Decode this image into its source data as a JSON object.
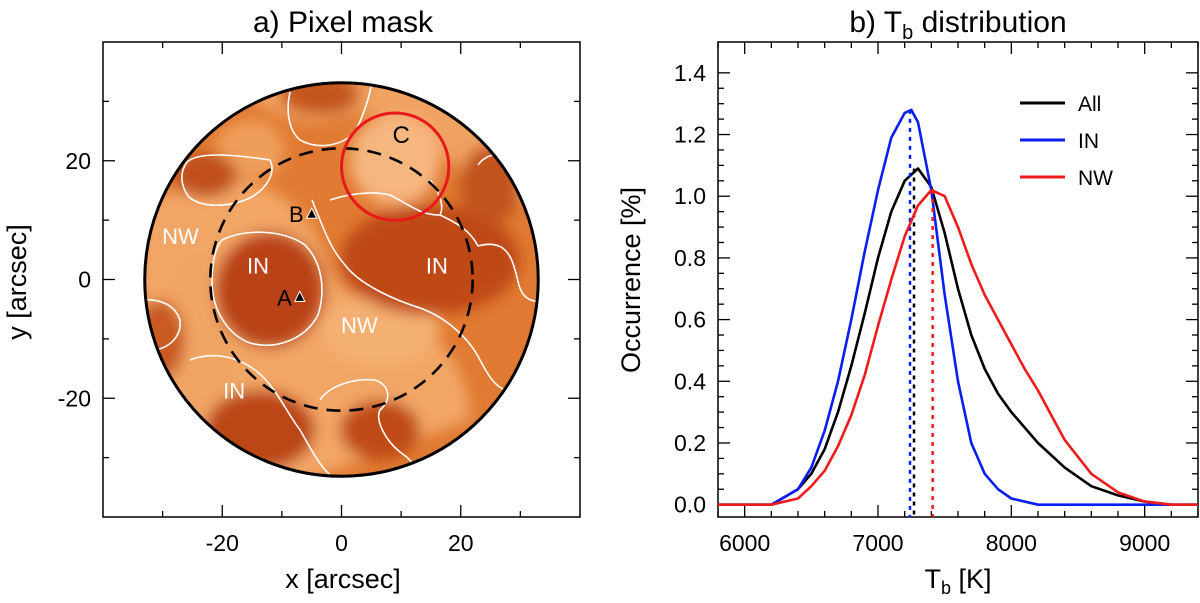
{
  "chart_data": [
    {
      "type": "heatmap",
      "title": "a) Pixel mask",
      "xlabel": "x [arcsec]",
      "ylabel": "y [arcsec]",
      "xlim": [
        -40,
        40
      ],
      "ylim": [
        -40,
        40
      ],
      "xticks": [
        -20,
        0,
        20
      ],
      "yticks": [
        -20,
        0,
        20
      ],
      "field_radius": 33,
      "dashed_circle": {
        "cx": 0,
        "cy": 0,
        "r": 22
      },
      "circle_c": {
        "label": "C",
        "cx": 9,
        "cy": 19,
        "r": 9,
        "color": "#e8191a"
      },
      "points": [
        {
          "label": "A",
          "x": -7,
          "y": -3
        },
        {
          "label": "B",
          "x": -5,
          "y": 11
        }
      ],
      "region_labels": [
        {
          "label": "NW",
          "x": -27,
          "y": 6
        },
        {
          "label": "IN",
          "x": -14,
          "y": 1
        },
        {
          "label": "IN",
          "x": 16,
          "y": 1
        },
        {
          "label": "NW",
          "x": 3,
          "y": -9
        },
        {
          "label": "IN",
          "x": -18,
          "y": -20
        }
      ],
      "colors": {
        "in": "#b94212",
        "nw": "#f2a666",
        "contour": "#ffffff"
      }
    },
    {
      "type": "line",
      "title": "b) T",
      "title_sub": "b",
      "title_rest": " distribution",
      "xlabel": "T",
      "xlabel_sub": "b",
      "xlabel_rest": " [K]",
      "ylabel": "Occurrence [%]",
      "xlim": [
        5800,
        9400
      ],
      "ylim": [
        -0.04,
        1.5
      ],
      "xticks": [
        6000,
        7000,
        8000,
        9000
      ],
      "yticks": [
        "0.0",
        "0.2",
        "0.4",
        "0.6",
        "0.8",
        "1.0",
        "1.2",
        "1.4"
      ],
      "legend_position": "top-right",
      "series": [
        {
          "name": "All",
          "color": "#000000",
          "peak_x": 7270,
          "x": [
            5800,
            6000,
            6200,
            6400,
            6500,
            6600,
            6700,
            6800,
            6900,
            7000,
            7100,
            7200,
            7300,
            7400,
            7500,
            7600,
            7700,
            7800,
            7900,
            8000,
            8200,
            8400,
            8600,
            8800,
            9000,
            9200,
            9400
          ],
          "values": [
            0,
            0,
            0,
            0.05,
            0.1,
            0.18,
            0.3,
            0.45,
            0.62,
            0.8,
            0.95,
            1.05,
            1.09,
            1.03,
            0.88,
            0.7,
            0.55,
            0.44,
            0.36,
            0.3,
            0.2,
            0.12,
            0.06,
            0.03,
            0.01,
            0,
            0
          ]
        },
        {
          "name": "IN",
          "color": "#0a1ef0",
          "peak_x": 7240,
          "x": [
            5800,
            6000,
            6200,
            6400,
            6500,
            6600,
            6700,
            6800,
            6900,
            7000,
            7100,
            7200,
            7250,
            7300,
            7400,
            7500,
            7600,
            7700,
            7800,
            7900,
            8000,
            8200,
            8400,
            8600,
            9400
          ],
          "values": [
            0,
            0,
            0,
            0.05,
            0.12,
            0.24,
            0.4,
            0.6,
            0.82,
            1.02,
            1.19,
            1.27,
            1.28,
            1.24,
            1.02,
            0.68,
            0.4,
            0.2,
            0.1,
            0.05,
            0.02,
            0,
            0,
            0,
            0
          ]
        },
        {
          "name": "NW",
          "color": "#ee1c1c",
          "peak_x": 7410,
          "x": [
            5800,
            6200,
            6400,
            6500,
            6600,
            6700,
            6800,
            6900,
            7000,
            7100,
            7200,
            7300,
            7400,
            7500,
            7600,
            7700,
            7800,
            7900,
            8000,
            8100,
            8200,
            8300,
            8400,
            8600,
            8800,
            9000,
            9200,
            9400
          ],
          "values": [
            0,
            0,
            0.02,
            0.06,
            0.11,
            0.19,
            0.29,
            0.42,
            0.58,
            0.73,
            0.87,
            0.97,
            1.02,
            1.0,
            0.9,
            0.78,
            0.68,
            0.6,
            0.52,
            0.44,
            0.37,
            0.29,
            0.21,
            0.1,
            0.04,
            0.01,
            0,
            0
          ]
        }
      ]
    }
  ]
}
